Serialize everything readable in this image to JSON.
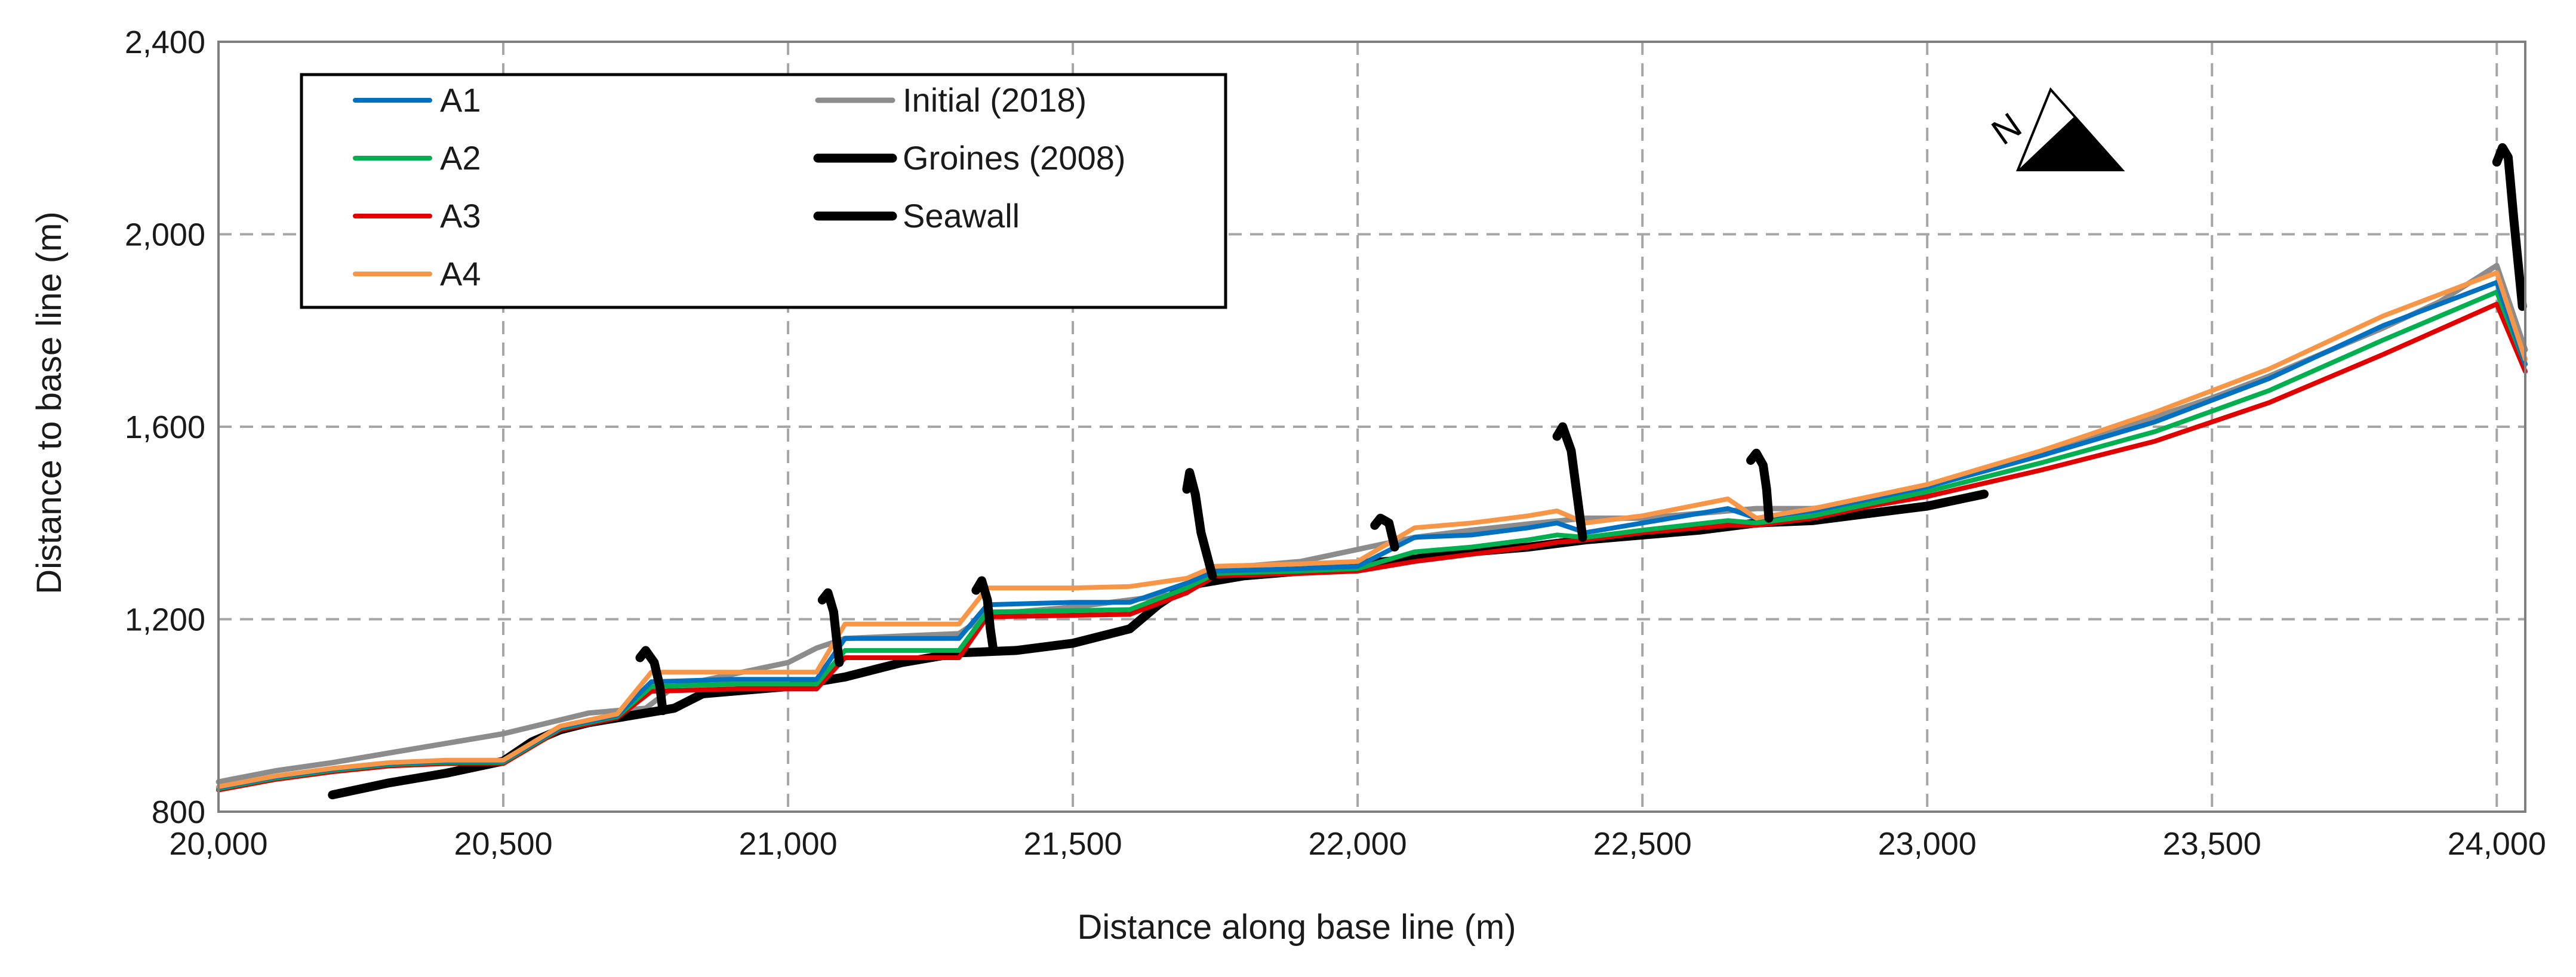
{
  "chart_data": {
    "type": "line",
    "title": "",
    "xlabel": "Distance along base line (m)",
    "ylabel": "Distance to base line (m)",
    "xlim": [
      20000,
      24050
    ],
    "ylim": [
      800,
      2400
    ],
    "grid": true,
    "legend_position": "top-left",
    "x_ticks": [
      {
        "value": 20000,
        "label": "20,000"
      },
      {
        "value": 20500,
        "label": "20,500"
      },
      {
        "value": 21000,
        "label": "21,000"
      },
      {
        "value": 21500,
        "label": "21,500"
      },
      {
        "value": 22000,
        "label": "22,000"
      },
      {
        "value": 22500,
        "label": "22,500"
      },
      {
        "value": 23000,
        "label": "23,000"
      },
      {
        "value": 23500,
        "label": "23,500"
      },
      {
        "value": 24000,
        "label": "24,000"
      }
    ],
    "y_ticks": [
      {
        "value": 800,
        "label": "800"
      },
      {
        "value": 1200,
        "label": "1,200"
      },
      {
        "value": 1600,
        "label": "1,600"
      },
      {
        "value": 2000,
        "label": "2,000"
      },
      {
        "value": 2400,
        "label": "2,400"
      }
    ],
    "north_arrow_label": "N",
    "series": [
      {
        "name": "Initial (2018)",
        "color": "#8c8c8c",
        "width": 9,
        "x": [
          20000,
          20100,
          20200,
          20300,
          20400,
          20500,
          20650,
          20750,
          20800,
          20900,
          21000,
          21050,
          21100,
          21200,
          21300,
          21350,
          21500,
          21700,
          21750,
          21900,
          22000,
          22100,
          22200,
          22300,
          22400,
          22500,
          22600,
          22700,
          22800,
          22900,
          23000,
          23100,
          23200,
          23300,
          23400,
          23500,
          23600,
          23700,
          23800,
          23900,
          24000,
          24050
        ],
        "y": [
          862,
          885,
          902,
          922,
          942,
          962,
          1005,
          1015,
          1060,
          1085,
          1110,
          1140,
          1160,
          1165,
          1170,
          1210,
          1225,
          1255,
          1305,
          1320,
          1345,
          1370,
          1385,
          1398,
          1410,
          1410,
          1420,
          1430,
          1430,
          1448,
          1478,
          1508,
          1543,
          1580,
          1620,
          1660,
          1705,
          1755,
          1805,
          1860,
          1935,
          1760
        ]
      },
      {
        "name": "A1",
        "color": "#0070c0",
        "width": 8,
        "x": [
          20000,
          20100,
          20200,
          20300,
          20400,
          20500,
          20600,
          20700,
          20760,
          20900,
          21050,
          21100,
          21200,
          21300,
          21350,
          21500,
          21600,
          21700,
          21750,
          21900,
          22000,
          22100,
          22200,
          22300,
          22350,
          22400,
          22500,
          22650,
          22700,
          22800,
          22900,
          23000,
          23200,
          23400,
          23600,
          23800,
          24000,
          24050
        ],
        "y": [
          850,
          872,
          888,
          900,
          905,
          905,
          975,
          1000,
          1070,
          1075,
          1075,
          1160,
          1160,
          1160,
          1230,
          1235,
          1235,
          1275,
          1300,
          1305,
          1310,
          1370,
          1375,
          1390,
          1400,
          1380,
          1400,
          1430,
          1410,
          1425,
          1450,
          1475,
          1540,
          1610,
          1700,
          1810,
          1900,
          1730
        ]
      },
      {
        "name": "A2",
        "color": "#00b050",
        "width": 8,
        "x": [
          20000,
          20100,
          20200,
          20300,
          20400,
          20500,
          20600,
          20700,
          20760,
          20900,
          21050,
          21100,
          21200,
          21300,
          21350,
          21500,
          21600,
          21700,
          21750,
          21900,
          22000,
          22100,
          22200,
          22300,
          22350,
          22400,
          22500,
          22650,
          22700,
          22800,
          22900,
          23000,
          23200,
          23400,
          23600,
          23800,
          24000,
          24050
        ],
        "y": [
          848,
          870,
          886,
          898,
          903,
          903,
          973,
          998,
          1060,
          1065,
          1065,
          1135,
          1135,
          1135,
          1215,
          1218,
          1220,
          1265,
          1295,
          1300,
          1305,
          1340,
          1350,
          1365,
          1375,
          1370,
          1385,
          1405,
          1400,
          1415,
          1440,
          1465,
          1525,
          1590,
          1675,
          1780,
          1880,
          1730
        ]
      },
      {
        "name": "A3",
        "color": "#e00000",
        "width": 8,
        "x": [
          20000,
          20100,
          20200,
          20300,
          20400,
          20500,
          20600,
          20700,
          20760,
          20900,
          21050,
          21100,
          21200,
          21300,
          21350,
          21500,
          21600,
          21700,
          21750,
          21900,
          22000,
          22100,
          22200,
          22300,
          22350,
          22400,
          22500,
          22650,
          22700,
          22800,
          22900,
          23000,
          23200,
          23400,
          23600,
          23800,
          24000,
          24050
        ],
        "y": [
          845,
          867,
          883,
          895,
          900,
          900,
          970,
          995,
          1050,
          1055,
          1055,
          1120,
          1120,
          1120,
          1205,
          1208,
          1210,
          1255,
          1290,
          1295,
          1300,
          1320,
          1335,
          1350,
          1360,
          1365,
          1380,
          1395,
          1395,
          1410,
          1435,
          1455,
          1510,
          1570,
          1650,
          1750,
          1855,
          1715
        ]
      },
      {
        "name": "A4",
        "color": "#f79646",
        "width": 8,
        "x": [
          20000,
          20100,
          20200,
          20300,
          20400,
          20500,
          20600,
          20700,
          20760,
          20900,
          21050,
          21100,
          21200,
          21300,
          21350,
          21500,
          21600,
          21700,
          21750,
          21900,
          22000,
          22100,
          22200,
          22300,
          22350,
          22400,
          22500,
          22650,
          22700,
          22800,
          22900,
          23000,
          23200,
          23400,
          23600,
          23800,
          24000,
          24050
        ],
        "y": [
          852,
          874,
          890,
          902,
          907,
          907,
          978,
          1003,
          1090,
          1090,
          1090,
          1190,
          1190,
          1190,
          1265,
          1265,
          1268,
          1285,
          1310,
          1315,
          1320,
          1390,
          1400,
          1415,
          1425,
          1400,
          1415,
          1450,
          1410,
          1430,
          1455,
          1480,
          1550,
          1630,
          1720,
          1830,
          1920,
          1740
        ]
      },
      {
        "name": "Seawall",
        "color": "#000000",
        "width": 15,
        "x": [
          20200,
          20300,
          20400,
          20500,
          20550,
          20600,
          20650,
          20700,
          20800,
          20850,
          20900,
          21000,
          21100,
          21200,
          21300,
          21400,
          21500,
          21600,
          21650,
          21700,
          21800,
          21900,
          22000,
          22100,
          22200,
          22300,
          22400,
          22500,
          22600,
          22700,
          22800,
          22900,
          23000,
          23100
        ],
        "y": [
          835,
          860,
          880,
          905,
          945,
          970,
          985,
          995,
          1015,
          1045,
          1050,
          1060,
          1080,
          1110,
          1130,
          1135,
          1150,
          1180,
          1230,
          1270,
          1290,
          1300,
          1315,
          1325,
          1340,
          1350,
          1365,
          1375,
          1385,
          1400,
          1405,
          1420,
          1435,
          1460
        ]
      },
      {
        "name": "Groines (2008)",
        "color": "#000000",
        "width": 15,
        "segments": [
          {
            "x": [
              20740,
              20750,
              20765,
              20775,
              20780
            ],
            "y": [
              1120,
              1135,
              1110,
              1060,
              1010
            ]
          },
          {
            "x": [
              21060,
              21070,
              21080,
              21085,
              21090
            ],
            "y": [
              1240,
              1255,
              1215,
              1160,
              1110
            ]
          },
          {
            "x": [
              21330,
              21340,
              21350,
              21355,
              21360
            ],
            "y": [
              1260,
              1280,
              1240,
              1180,
              1140
            ]
          },
          {
            "x": [
              21700,
              21705,
              21715,
              21725,
              21745
            ],
            "y": [
              1470,
              1505,
              1460,
              1380,
              1290
            ]
          },
          {
            "x": [
              22030,
              22040,
              22055,
              22060,
              22065
            ],
            "y": [
              1395,
              1410,
              1400,
              1375,
              1350
            ]
          },
          {
            "x": [
              22350,
              22360,
              22375,
              22385,
              22395
            ],
            "y": [
              1580,
              1600,
              1550,
              1460,
              1370
            ]
          },
          {
            "x": [
              22690,
              22700,
              22712,
              22718,
              22722
            ],
            "y": [
              1530,
              1545,
              1520,
              1470,
              1410
            ]
          },
          {
            "x": [
              24000,
              24010,
              24020,
              24030,
              24045
            ],
            "y": [
              2150,
              2180,
              2160,
              2030,
              1850
            ]
          }
        ]
      }
    ]
  },
  "legend": [
    {
      "label": "A1",
      "color": "#0070c0",
      "width": 8
    },
    {
      "label": "A2",
      "color": "#00b050",
      "width": 8
    },
    {
      "label": "A3",
      "color": "#e00000",
      "width": 8
    },
    {
      "label": "A4",
      "color": "#f79646",
      "width": 8
    },
    {
      "label": "Initial (2018)",
      "color": "#8c8c8c",
      "width": 9
    },
    {
      "label": "Groines (2008)",
      "color": "#000000",
      "width": 15
    },
    {
      "label": "Seawall",
      "color": "#000000",
      "width": 15
    }
  ]
}
